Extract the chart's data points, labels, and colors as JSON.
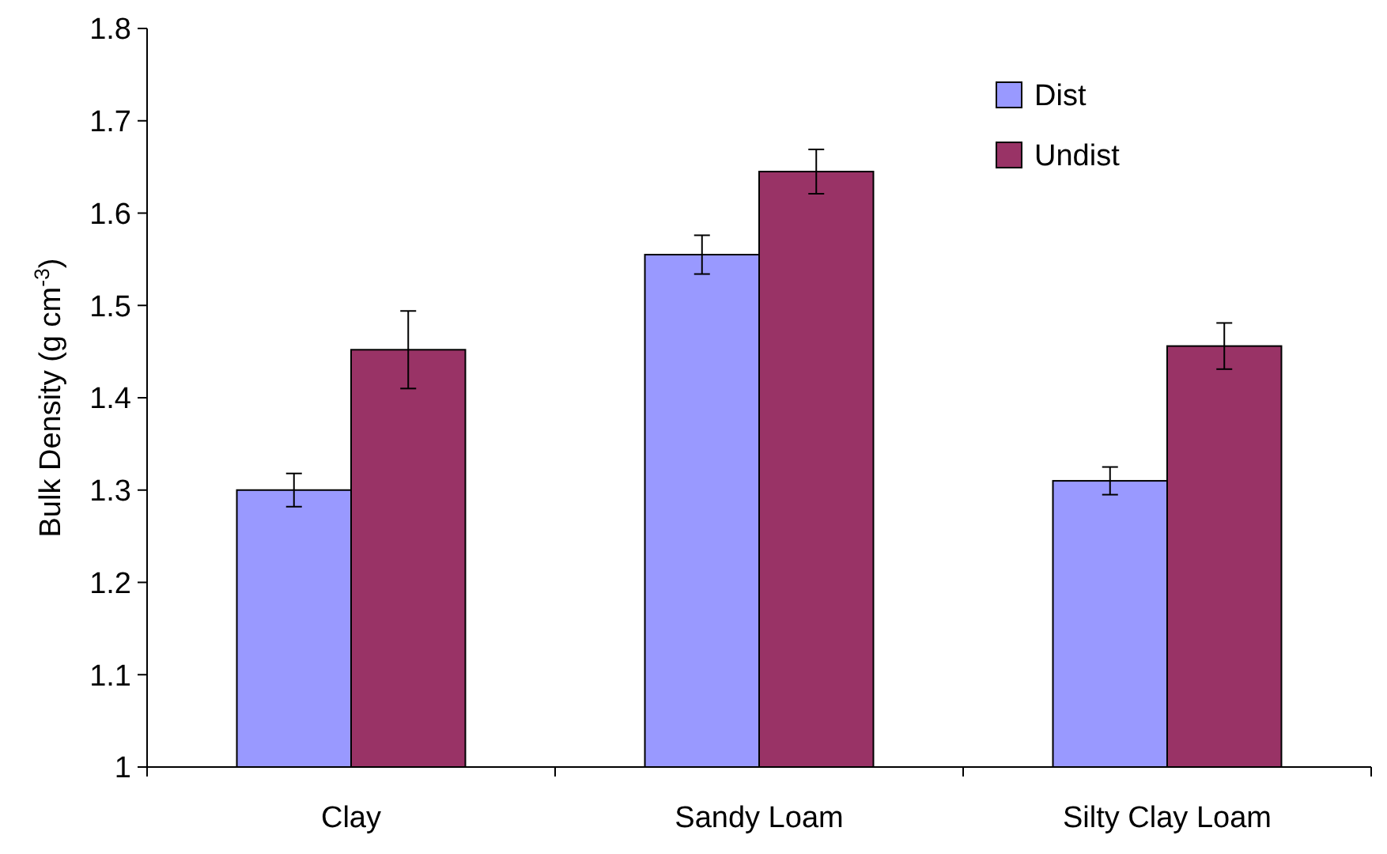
{
  "chart_data": {
    "type": "bar",
    "ylabel": "Bulk Density (g cm$^{-3}$)",
    "categories": [
      "Clay",
      "Sandy Loam",
      "Silty Clay Loam"
    ],
    "series": [
      {
        "name": "Dist",
        "color": "#9999ff",
        "values": [
          1.3,
          1.555,
          1.31
        ],
        "errors": [
          0.018,
          0.021,
          0.015
        ]
      },
      {
        "name": "Undist",
        "color": "#993366",
        "values": [
          1.452,
          1.645,
          1.456
        ],
        "errors": [
          0.042,
          0.024,
          0.025
        ]
      }
    ],
    "ylim": [
      1,
      1.8
    ],
    "yticks": [
      1,
      1.1,
      1.2,
      1.3,
      1.4,
      1.5,
      1.6,
      1.7,
      1.8
    ],
    "grid": false,
    "legend": "top right"
  }
}
